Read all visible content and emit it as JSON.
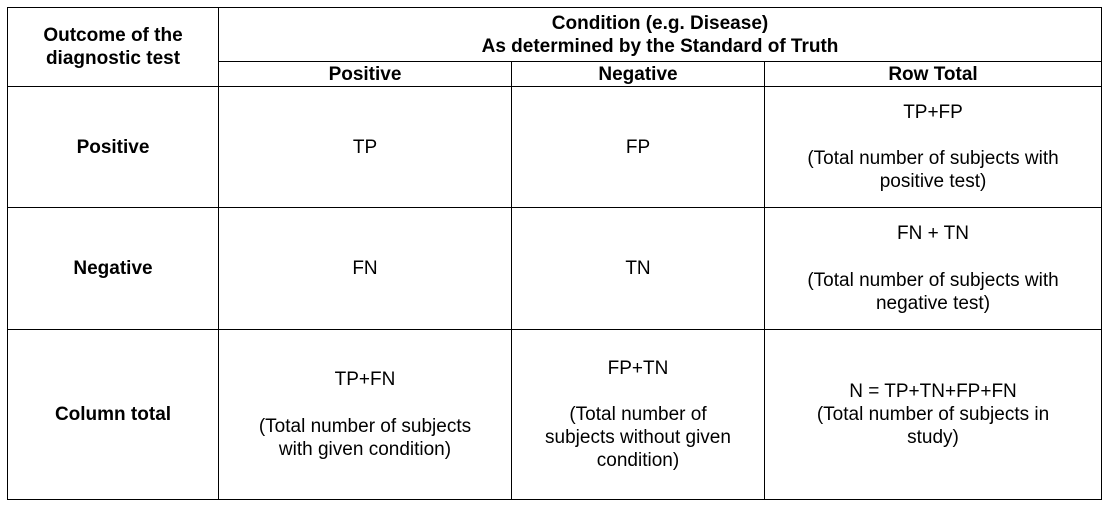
{
  "table": {
    "corner_line1": "Outcome of the",
    "corner_line2": "diagnostic test",
    "condition_line1": "Condition (e.g. Disease)",
    "condition_line2": "As determined by the Standard of Truth",
    "col_positive": "Positive",
    "col_negative": "Negative",
    "col_row_total": "Row Total",
    "rows": [
      {
        "label": "Positive",
        "positive": "TP",
        "negative": "FP",
        "total_formula": "TP+FP",
        "total_note_line1": "(Total number of subjects with",
        "total_note_line2": "positive test)"
      },
      {
        "label": "Negative",
        "positive": "FN",
        "negative": "TN",
        "total_formula": "FN + TN",
        "total_note_line1": "(Total number of subjects with",
        "total_note_line2": "negative test)"
      }
    ],
    "column_total": {
      "label": "Column total",
      "positive_formula": "TP+FN",
      "positive_note_line1": "(Total number of subjects",
      "positive_note_line2": "with given condition)",
      "negative_formula": "FP+TN",
      "negative_note_line1": "(Total number of",
      "negative_note_line2": "subjects without given",
      "negative_note_line3": "condition)",
      "grand_formula": "N = TP+TN+FP+FN",
      "grand_note_line1": "(Total number of subjects in",
      "grand_note_line2": "study)"
    }
  }
}
